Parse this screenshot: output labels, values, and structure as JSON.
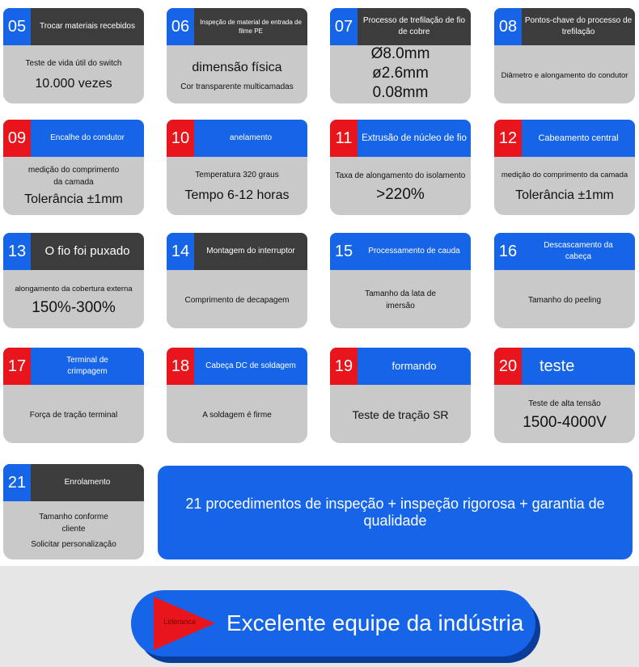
{
  "colors": {
    "blue": "#1664e8",
    "red": "#e8161c",
    "dark": "#3c3c3c",
    "gray": "#c9c9c9"
  },
  "cards": [
    {
      "num": "05",
      "title": "Trocar materiais recebidos",
      "lines": [
        "Teste de vida útil do switch",
        "10.000 vezes"
      ]
    },
    {
      "num": "06",
      "title": "Inspeção de material de entrada de filme PE",
      "lines": [
        "dimensão física",
        "Cor transparente multicamadas"
      ]
    },
    {
      "num": "07",
      "title": "Processo de trefilação de fio de cobre",
      "lines": [
        "Ø8.0mm",
        "ø2.6mm",
        "0.08mm"
      ]
    },
    {
      "num": "08",
      "title": "Pontos-chave do processo de trefilação",
      "lines": [
        "Diâmetro e alongamento do condutor"
      ]
    },
    {
      "num": "09",
      "title": "Encalhe do condutor",
      "lines": [
        "medição do comprimento da camada",
        "Tolerância ±1mm"
      ]
    },
    {
      "num": "10",
      "title": "anelamento",
      "lines": [
        "Temperatura 320 graus",
        "Tempo 6-12 horas"
      ]
    },
    {
      "num": "11",
      "title": "Extrusão de núcleo de fio",
      "lines": [
        "Taxa de alongamento do isolamento",
        ">220%"
      ]
    },
    {
      "num": "12",
      "title": "Cabeamento central",
      "lines": [
        "medição do comprimento da camada",
        "Tolerância ±1mm"
      ]
    },
    {
      "num": "13",
      "title": "O fio foi puxado",
      "lines": [
        "alongamento da cobertura externa",
        "150%-300%"
      ]
    },
    {
      "num": "14",
      "title": "Montagem do interruptor",
      "lines": [
        "Comprimento de decapagem"
      ]
    },
    {
      "num": "15",
      "title": "Processamento de cauda",
      "lines": [
        "Tamanho da lata de imersão"
      ]
    },
    {
      "num": "16",
      "title": "Descascamento da cabeça",
      "lines": [
        "Tamanho do peeling"
      ]
    },
    {
      "num": "17",
      "title": "Terminal de crimpagem",
      "lines": [
        "Força de tração terminal"
      ]
    },
    {
      "num": "18",
      "title": "Cabeça DC de soldagem",
      "lines": [
        "A soldagem é firme"
      ]
    },
    {
      "num": "19",
      "title": "formando",
      "lines": [
        "Teste de tração SR"
      ]
    },
    {
      "num": "20",
      "title": "teste",
      "lines": [
        "Teste de alta tensão",
        "1500-4000V"
      ]
    },
    {
      "num": "21",
      "title": "Enrolamento",
      "lines": [
        "Tamanho conforme cliente",
        "Solicitar personalização"
      ]
    }
  ],
  "banner": {
    "text": "21 procedimentos de inspeção + inspeção rigorosa + garantia de qualidade"
  },
  "footer": {
    "arrow_label": "Lideranca",
    "text": "Excelente equipe da indústria"
  }
}
